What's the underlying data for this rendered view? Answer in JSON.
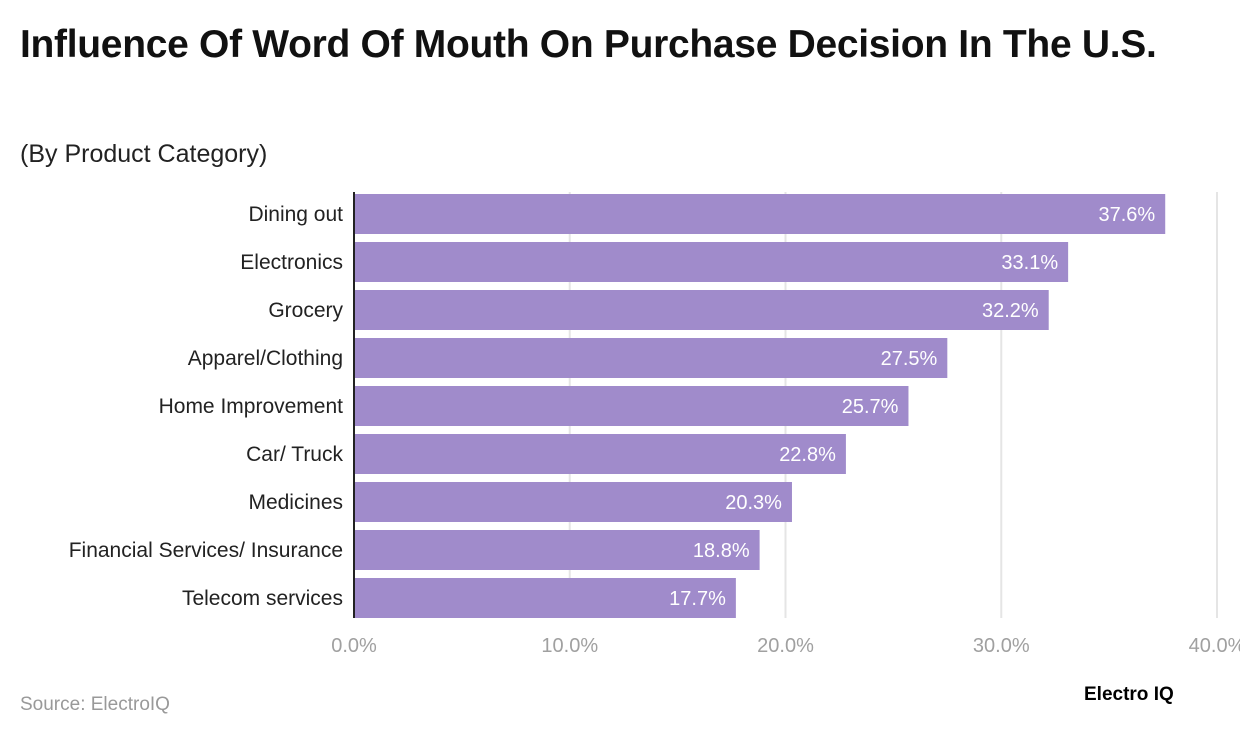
{
  "title": "Influence Of Word Of Mouth On Purchase Decision In The U.S.",
  "subtitle": "(By Product Category)",
  "source": "Source: ElectroIQ",
  "logo": "Electro IQ",
  "colors": {
    "bar": "#a08bcb",
    "grid": "#e5e5e5",
    "axis": "#222222",
    "tick": "#a0a0a0"
  },
  "chart_data": {
    "type": "bar",
    "orientation": "horizontal",
    "title": "Influence Of Word Of Mouth On Purchase Decision In The U.S.",
    "subtitle": "(By Product Category)",
    "categories": [
      "Dining out",
      "Electronics",
      "Grocery",
      "Apparel/Clothing",
      "Home Improvement",
      "Car/ Truck",
      "Medicines",
      "Financial Services/ Insurance",
      "Telecom services"
    ],
    "values": [
      37.6,
      33.1,
      32.2,
      27.5,
      25.7,
      22.8,
      20.3,
      18.8,
      17.7
    ],
    "data_labels": [
      "37.6%",
      "33.1%",
      "32.2%",
      "27.5%",
      "25.7%",
      "22.8%",
      "20.3%",
      "18.8%",
      "17.7%"
    ],
    "xlim": [
      0,
      40
    ],
    "x_ticks": [
      0,
      10,
      20,
      30,
      40
    ],
    "x_tick_labels": [
      "0.0%",
      "10.0%",
      "20.0%",
      "30.0%",
      "40.0%"
    ],
    "grid": true,
    "xlabel": "",
    "ylabel": ""
  }
}
